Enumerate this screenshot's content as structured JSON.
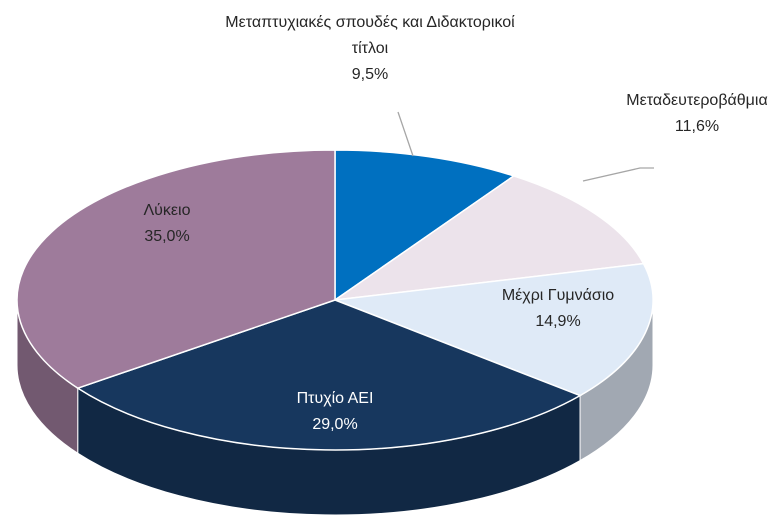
{
  "chart_data": {
    "type": "pie",
    "three_d": true,
    "categories": [
      "Μεταπτυχιακές σπουδές και Διδακτορικοί τίτλοι",
      "Μεταδευτεροβάθμια",
      "Μέχρι Γυμνάσιο",
      "Πτυχίο ΑΕΙ",
      "Λύκειο"
    ],
    "values": [
      9.5,
      11.6,
      14.9,
      29.0,
      35.0
    ],
    "value_labels": [
      "9,5%",
      "11,6%",
      "14,9%",
      "29,0%",
      "35,0%"
    ],
    "colors": [
      "#0070c0",
      "#ece3eb",
      "#dfeaf7",
      "#17375e",
      "#9e7b9b"
    ]
  }
}
